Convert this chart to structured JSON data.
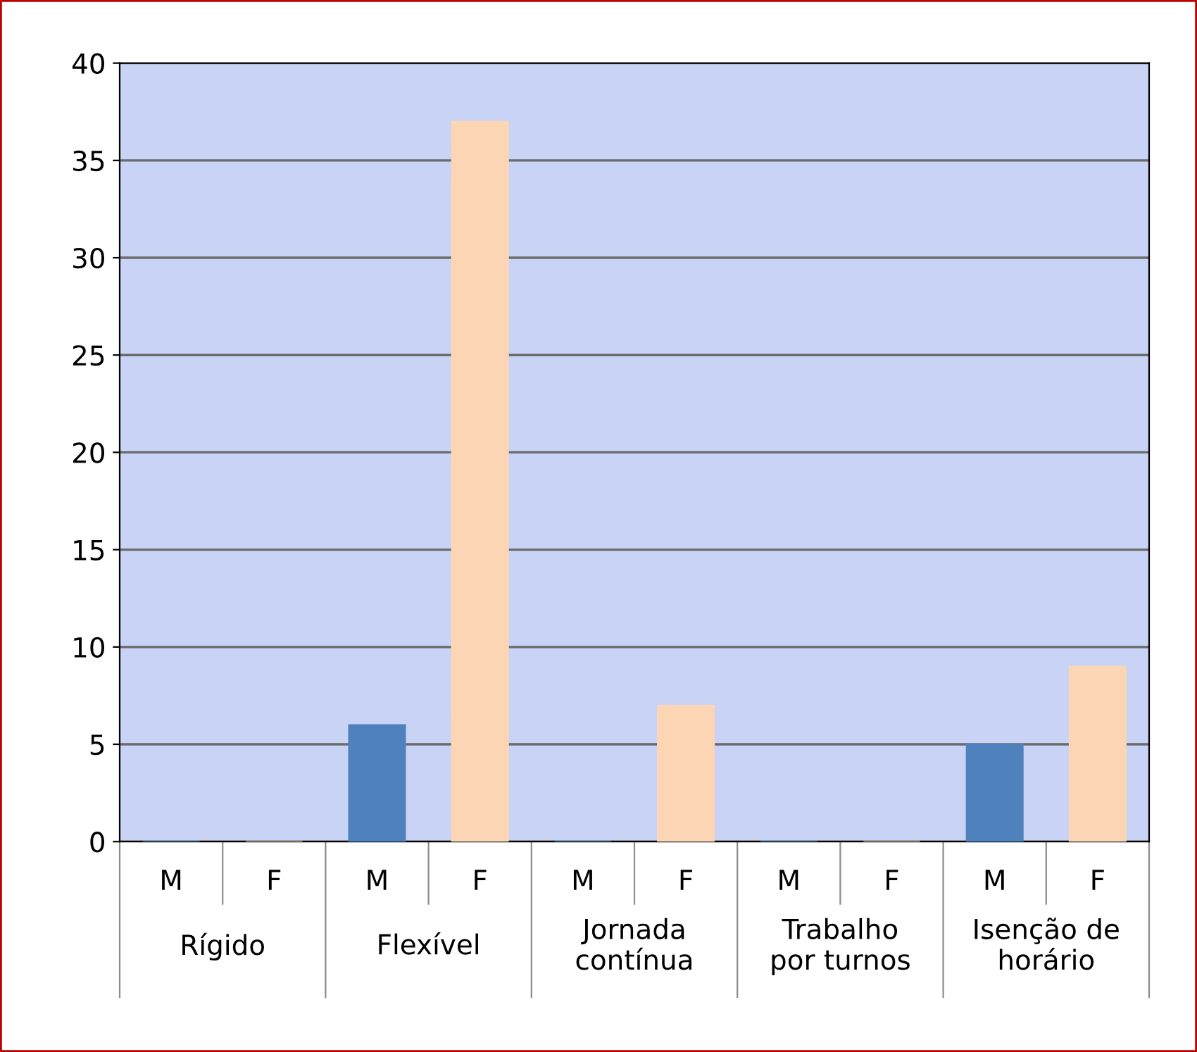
{
  "chart_data": {
    "type": "bar",
    "categories": [
      "Rígido",
      "Flexível",
      "Jornada\ncontínua",
      "Trabalho\npor turnos",
      "Isenção de\nhorário"
    ],
    "series": [
      {
        "name": "M",
        "color": "#4f81bd",
        "values": [
          0,
          6,
          0,
          0,
          5
        ]
      },
      {
        "name": "F",
        "color": "#fcd5b5",
        "values": [
          0,
          37,
          7,
          0,
          9
        ]
      }
    ],
    "ylim": [
      0,
      40
    ],
    "yticks": [
      0,
      5,
      10,
      15,
      20,
      25,
      30,
      35,
      40
    ],
    "grid": "y",
    "legend": "bottom"
  }
}
